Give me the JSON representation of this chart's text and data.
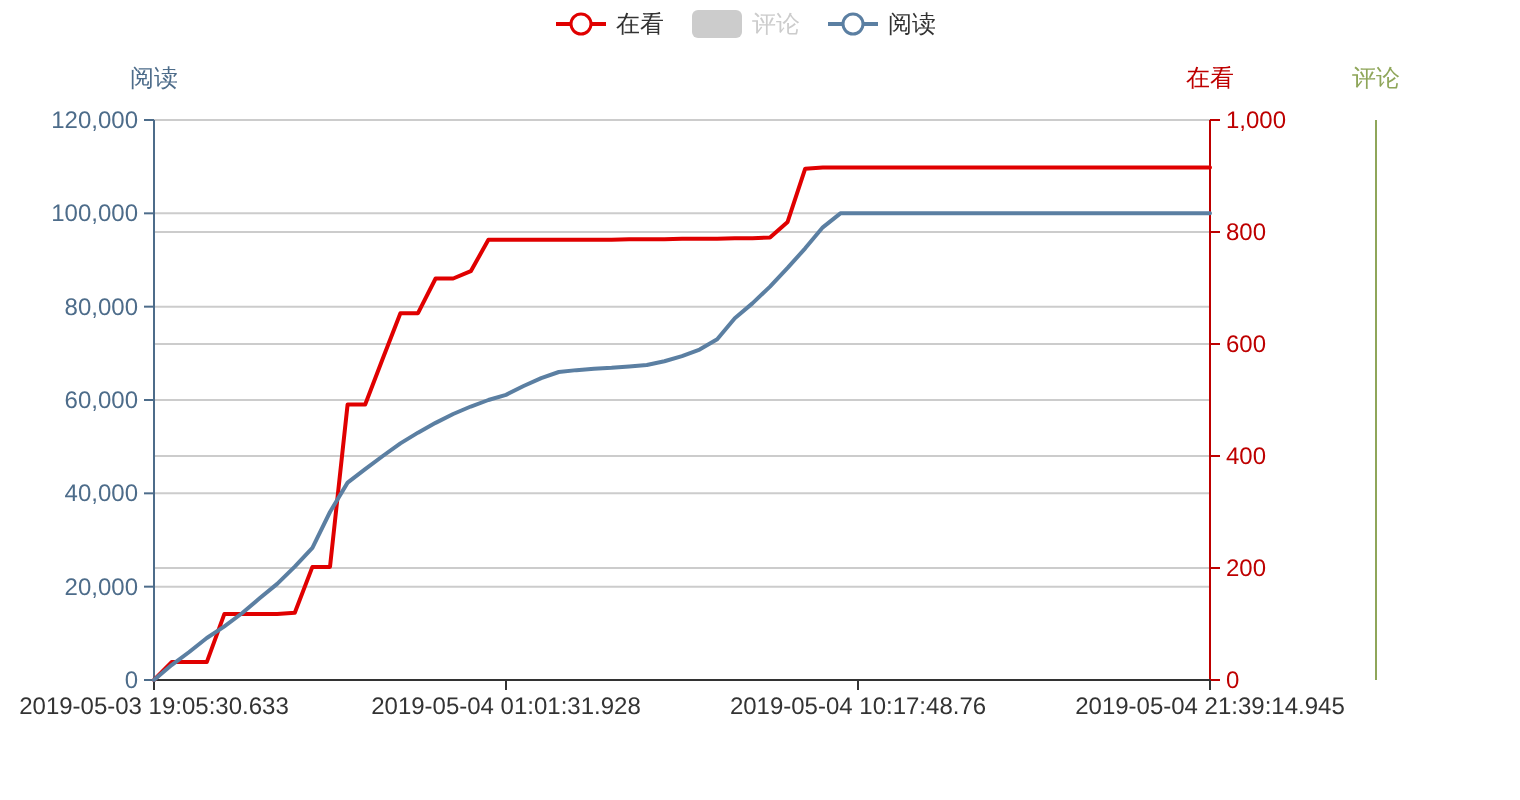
{
  "chart_data": {
    "type": "line",
    "ylabel": "阅读",
    "y2label": "在看",
    "y3label": "评论",
    "categories": [
      "2019-05-03 19:05:30.633",
      null,
      null,
      null,
      null,
      null,
      null,
      null,
      null,
      null,
      null,
      null,
      null,
      null,
      null,
      null,
      null,
      null,
      null,
      null,
      "2019-05-04 01:01:31.928",
      null,
      null,
      null,
      null,
      null,
      null,
      null,
      null,
      null,
      null,
      null,
      null,
      null,
      null,
      null,
      null,
      null,
      null,
      null,
      "2019-05-04 10:17:48.76",
      null,
      null,
      null,
      null,
      null,
      null,
      null,
      null,
      null,
      null,
      null,
      null,
      null,
      null,
      null,
      null,
      null,
      null,
      null,
      "2019-05-04 21:39:14.945"
    ],
    "series": [
      {
        "name": "在看",
        "color": "#e00000",
        "axis": "y2",
        "values": [
          0,
          32,
          32,
          32,
          118,
          118,
          118,
          118,
          120,
          202,
          202,
          492,
          492,
          574,
          655,
          655,
          717,
          717,
          730,
          786,
          786,
          786,
          786,
          786,
          786,
          786,
          786,
          787,
          787,
          787,
          788,
          788,
          788,
          789,
          789,
          790,
          818,
          913,
          915,
          915,
          915,
          915,
          915,
          915,
          915,
          915,
          915,
          915,
          915,
          915,
          915,
          915,
          915,
          915,
          915,
          915,
          915,
          915,
          915,
          915,
          915
        ]
      },
      {
        "name": "评论",
        "color": "#cccccc",
        "values": [
          null,
          null,
          null,
          null,
          null,
          null,
          null,
          null,
          null,
          null,
          null,
          null,
          null,
          null,
          null,
          null,
          null,
          null,
          null,
          null,
          null,
          null,
          null,
          null,
          null,
          null,
          null,
          null,
          null,
          null,
          null,
          null,
          null,
          null,
          null,
          null,
          null,
          null,
          null,
          null,
          null,
          null,
          null,
          null,
          null,
          null,
          null,
          null,
          null,
          null,
          null,
          null,
          null,
          null,
          null,
          null,
          null,
          null,
          null,
          null,
          null
        ]
      },
      {
        "name": "阅读",
        "color": "#5b7fa2",
        "axis": "y",
        "values": [
          0,
          3200,
          6000,
          9000,
          11500,
          14300,
          17500,
          20600,
          24300,
          28300,
          36000,
          42300,
          45200,
          48000,
          50700,
          53000,
          55100,
          57000,
          58600,
          60000,
          61100,
          63000,
          64700,
          66000,
          66400,
          66700,
          66900,
          67200,
          67500,
          68300,
          69400,
          70800,
          73000,
          77500,
          80700,
          84300,
          88300,
          92500,
          97000,
          100000,
          100000,
          100000,
          100000,
          100000,
          100000,
          100000,
          100000,
          100000,
          100000,
          100000,
          100000,
          100000,
          100000,
          100000,
          100000,
          100000,
          100000,
          100000,
          100000,
          100000,
          100000
        ]
      }
    ],
    "ylim": [
      0,
      120000
    ],
    "yticks": [
      0,
      {
        "value": 20000,
        "label": "20,000"
      },
      {
        "value": 40000,
        "label": "40,000"
      },
      {
        "value": 60000,
        "label": "60,000"
      },
      {
        "value": 80000,
        "label": "80,000"
      },
      {
        "value": 100000,
        "label": "100,000"
      },
      {
        "value": 120000,
        "label": "120,000"
      }
    ],
    "y2lim": [
      0,
      1000
    ],
    "y2ticks": [
      0,
      200,
      400,
      600,
      800,
      {
        "value": 1000,
        "label": "1,000"
      }
    ],
    "grid": "y",
    "legend": "top",
    "line_style": "solid"
  }
}
